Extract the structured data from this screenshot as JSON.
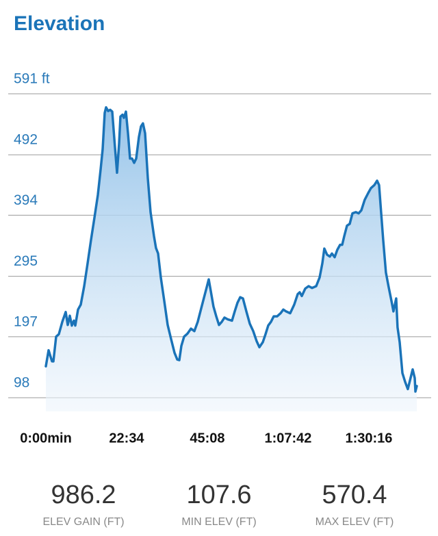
{
  "chart_data": {
    "type": "area",
    "title": "Elevation",
    "color": "#1a73b8",
    "grid": true,
    "xlim": [
      0,
      6220
    ],
    "xticks": [
      {
        "value": 0,
        "label": "0:00min"
      },
      {
        "value": 1354,
        "label": "22:34"
      },
      {
        "value": 2708,
        "label": "45:08"
      },
      {
        "value": 4062,
        "label": "1:07:42"
      },
      {
        "value": 5416,
        "label": "1:30:16"
      }
    ],
    "ylim": [
      98,
      591
    ],
    "yticks": [
      {
        "value": 591,
        "label": "591 ft"
      },
      492,
      394,
      295,
      197,
      98
    ],
    "x": [
      0,
      46,
      103,
      126,
      172,
      218,
      275,
      333,
      367,
      402,
      436,
      470,
      493,
      539,
      585,
      643,
      700,
      757,
      815,
      872,
      918,
      952,
      987,
      1010,
      1044,
      1079,
      1113,
      1159,
      1193,
      1228,
      1251,
      1285,
      1308,
      1343,
      1377,
      1411,
      1446,
      1480,
      1515,
      1561,
      1595,
      1629,
      1664,
      1710,
      1756,
      1813,
      1847,
      1882,
      1928,
      1985,
      2043,
      2100,
      2157,
      2203,
      2238,
      2272,
      2318,
      2375,
      2433,
      2490,
      2547,
      2605,
      2651,
      2697,
      2731,
      2766,
      2811,
      2857,
      2903,
      2949,
      2995,
      3052,
      3121,
      3167,
      3213,
      3259,
      3305,
      3362,
      3420,
      3477,
      3534,
      3580,
      3638,
      3684,
      3729,
      3775,
      3821,
      3879,
      3936,
      3982,
      4028,
      4097,
      4165,
      4223,
      4257,
      4292,
      4349,
      4406,
      4464,
      4533,
      4590,
      4636,
      4670,
      4716,
      4762,
      4797,
      4843,
      4888,
      4934,
      4969,
      5003,
      5049,
      5095,
      5141,
      5198,
      5244,
      5290,
      5347,
      5405,
      5451,
      5508,
      5554,
      5588,
      5623,
      5657,
      5703,
      5749,
      5795,
      5829,
      5875,
      5898,
      5933,
      5979,
      6024,
      6070,
      6116,
      6151,
      6185,
      6197,
      6220
    ],
    "values": [
      149,
      175,
      157,
      157,
      197,
      201,
      221,
      237,
      216,
      231,
      215,
      223,
      215,
      241,
      249,
      279,
      316,
      354,
      390,
      427,
      468,
      501,
      560,
      569,
      563,
      565,
      562,
      504,
      463,
      510,
      554,
      557,
      552,
      562,
      527,
      486,
      486,
      479,
      486,
      521,
      538,
      543,
      527,
      454,
      399,
      360,
      341,
      332,
      293,
      255,
      216,
      193,
      171,
      160,
      159,
      182,
      197,
      202,
      210,
      206,
      221,
      243,
      260,
      277,
      290,
      271,
      246,
      230,
      216,
      221,
      228,
      225,
      223,
      238,
      252,
      261,
      259,
      238,
      218,
      206,
      190,
      180,
      188,
      201,
      215,
      221,
      230,
      230,
      235,
      241,
      238,
      235,
      249,
      266,
      269,
      263,
      275,
      279,
      276,
      279,
      293,
      316,
      340,
      330,
      327,
      332,
      326,
      338,
      346,
      346,
      360,
      377,
      380,
      397,
      399,
      397,
      402,
      419,
      430,
      438,
      443,
      450,
      443,
      397,
      354,
      301,
      277,
      255,
      238,
      259,
      212,
      188,
      138,
      124,
      112,
      130,
      144,
      130,
      108,
      117
    ],
    "stats": [
      {
        "value": 986.2,
        "label": "ELEV GAIN (FT)"
      },
      {
        "value": 107.6,
        "label": "MIN ELEV (FT)"
      },
      {
        "value": 570.4,
        "label": "MAX ELEV (FT)"
      }
    ]
  }
}
